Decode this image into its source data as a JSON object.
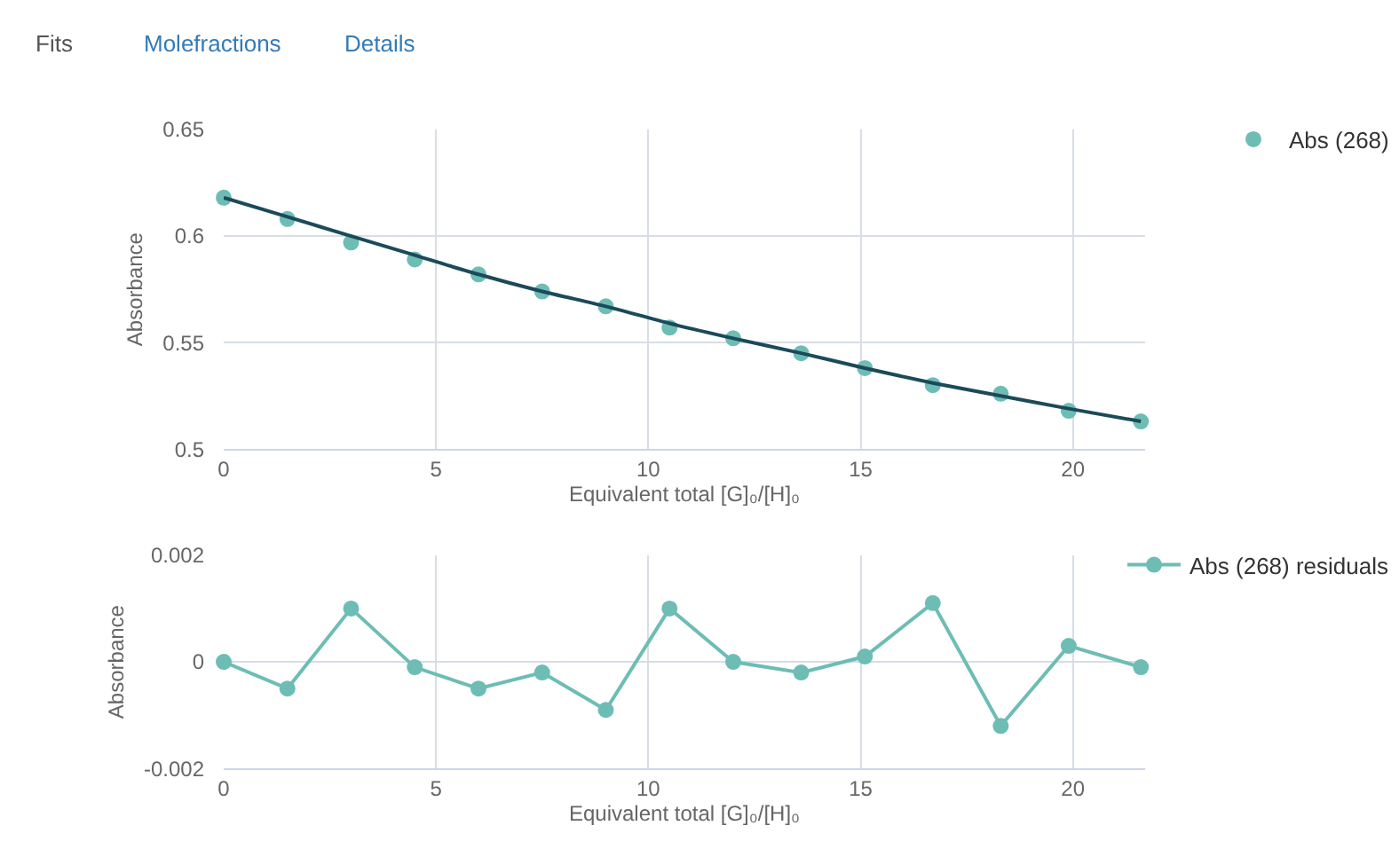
{
  "chart_data": [
    {
      "type": "scatter",
      "ylabel": "Absorbance",
      "xlabel": "Equivalent total [G]₀/[H]₀",
      "annotations": [
        "Fits",
        "Molefractions",
        "Details"
      ],
      "x": [
        0,
        1.5,
        3.0,
        4.5,
        6.0,
        7.5,
        9.0,
        10.5,
        12.0,
        13.6,
        15.1,
        16.7,
        18.3,
        19.9,
        21.6
      ],
      "series": [
        {
          "name": "Abs (268)",
          "color": "#6dbdb5",
          "type": "scatter",
          "marker": "circle",
          "values": [
            0.618,
            0.608,
            0.597,
            0.589,
            0.582,
            0.574,
            0.567,
            0.557,
            0.552,
            0.545,
            0.538,
            0.53,
            0.526,
            0.518,
            0.513
          ]
        },
        {
          "color": "#1b4a5a",
          "type": "line",
          "marker": "none",
          "line_style": "solid",
          "values": [
            0.618,
            0.609,
            0.6,
            0.591,
            0.582,
            0.574,
            0.567,
            0.559,
            0.552,
            0.545,
            0.538,
            0.531,
            0.525,
            0.519,
            0.513
          ]
        }
      ],
      "xlim": [
        0,
        21.7
      ],
      "xticks": [
        0,
        5,
        10,
        15,
        20
      ],
      "ylim": [
        0.5,
        0.65
      ],
      "yticks": [
        0.5,
        0.55,
        0.6,
        0.65
      ],
      "grid": true,
      "legend": "top right"
    },
    {
      "type": "line",
      "ylabel": "Absorbance",
      "xlabel": "Equivalent total [G]₀/[H]₀",
      "x": [
        0,
        1.5,
        3.0,
        4.5,
        6.0,
        7.5,
        9.0,
        10.5,
        12.0,
        13.6,
        15.1,
        16.7,
        18.3,
        19.9,
        21.6
      ],
      "series": [
        {
          "name": "Abs (268) residuals",
          "color": "#6dbdb5",
          "values": [
            0,
            -0.0005,
            0.001,
            -0.0001,
            -0.0005,
            -0.0002,
            -0.0009,
            0.001,
            0,
            -0.0002,
            0.0001,
            0.0011,
            -0.0012,
            0.0003,
            -0.0001
          ]
        }
      ],
      "marker": "circle",
      "line_style": "solid",
      "xlim": [
        0,
        21.7
      ],
      "xticks": [
        0,
        5,
        10,
        15,
        20
      ],
      "ylim": [
        -0.002,
        0.002
      ],
      "yticks": [
        -0.002,
        0,
        0.002
      ],
      "grid": true,
      "legend": "top right"
    }
  ]
}
